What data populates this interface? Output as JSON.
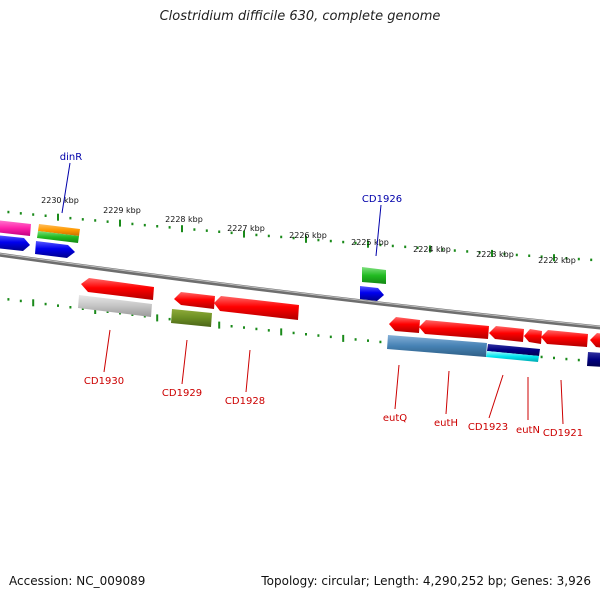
{
  "title": "Clostridium difficile 630, complete genome",
  "footer": {
    "accession": "Accession: NC_009089",
    "info": "Topology: circular; Length: 4,290,252 bp; Genes: 3,926"
  },
  "kbp_ticks": [
    "2230 kbp",
    "2229 kbp",
    "2228 kbp",
    "2227 kbp",
    "2226 kbp",
    "2225 kbp",
    "2224 kbp",
    "2223 kbp",
    "2222 kbp"
  ],
  "genes_top": [
    {
      "label": "dinR",
      "color": "#0000aa"
    },
    {
      "label": "CD1926",
      "color": "#0000aa"
    }
  ],
  "genes_bottom": [
    {
      "label": "CD1930",
      "color": "#cc0000"
    },
    {
      "label": "CD1929",
      "color": "#cc0000"
    },
    {
      "label": "CD1928",
      "color": "#cc0000"
    },
    {
      "label": "eutQ",
      "color": "#cc0000"
    },
    {
      "label": "eutH",
      "color": "#cc0000"
    },
    {
      "label": "CD1923",
      "color": "#cc0000"
    },
    {
      "label": "eutN",
      "color": "#cc0000"
    },
    {
      "label": "CD1921",
      "color": "#cc0000"
    }
  ]
}
